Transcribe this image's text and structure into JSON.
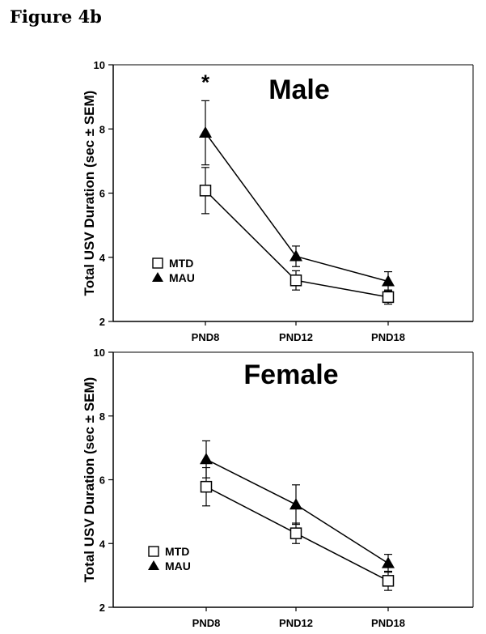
{
  "figure_label": "Figure 4b",
  "chart_data": [
    {
      "type": "line",
      "title": "Male",
      "xlabel": "",
      "ylabel": "Total USV Duration (sec ± SEM)",
      "categories": [
        "PND8",
        "PND12",
        "PND18"
      ],
      "ylim": [
        2,
        10
      ],
      "yticks": [
        2,
        4,
        6,
        8,
        10
      ],
      "grid": false,
      "legend": "left-lower",
      "series": [
        {
          "name": "MTD",
          "marker": "open-square",
          "values": [
            6.08,
            3.28,
            2.76
          ],
          "sem": [
            0.72,
            0.3,
            0.22
          ]
        },
        {
          "name": "MAU",
          "marker": "filled-triangle",
          "values": [
            7.88,
            4.03,
            3.25
          ],
          "sem": [
            1.0,
            0.32,
            0.3
          ]
        }
      ],
      "annotations": [
        {
          "text": "*",
          "category": "PND8"
        }
      ]
    },
    {
      "type": "line",
      "title": "Female",
      "xlabel": "",
      "ylabel": "Total USV Duration (sec ± SEM)",
      "categories": [
        "PND8",
        "PND12",
        "PND18"
      ],
      "ylim": [
        2,
        10
      ],
      "yticks": [
        2,
        4,
        6,
        8,
        10
      ],
      "grid": false,
      "legend": "left-lower",
      "series": [
        {
          "name": "MTD",
          "marker": "open-square",
          "values": [
            5.78,
            4.32,
            2.83
          ],
          "sem": [
            0.6,
            0.32,
            0.3
          ]
        },
        {
          "name": "MAU",
          "marker": "filled-triangle",
          "values": [
            6.64,
            5.22,
            3.38
          ],
          "sem": [
            0.58,
            0.62,
            0.28
          ]
        }
      ],
      "annotations": []
    }
  ]
}
